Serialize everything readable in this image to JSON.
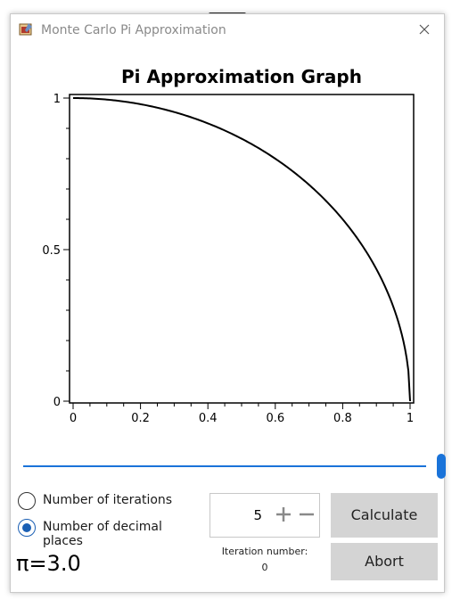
{
  "window": {
    "title": "Monte Carlo Pi Approximation"
  },
  "chart_data": {
    "type": "line",
    "title": "Pi Approximation Graph",
    "xlabel": "",
    "ylabel": "",
    "xlim": [
      0,
      1
    ],
    "ylim": [
      0,
      1
    ],
    "x_ticks": [
      "0",
      "0.2",
      "0.4",
      "0.6",
      "0.8",
      "1"
    ],
    "y_ticks": [
      "0",
      "0.5",
      "1"
    ],
    "grid": false,
    "series": [
      {
        "points_note": "quarter circle y = sqrt(1 - x^2)",
        "color": "#000000"
      }
    ]
  },
  "slider": {
    "value": 1.0
  },
  "options": {
    "iterations_label": "Number of iterations",
    "decimal_places_label": "Number of decimal places",
    "selected": "decimal_places"
  },
  "result": {
    "pi_text": "π=3.0"
  },
  "stepper": {
    "value": "5"
  },
  "iteration": {
    "label": "Iteration number:",
    "value": "0"
  },
  "buttons": {
    "calculate": "Calculate",
    "abort": "Abort"
  },
  "colors": {
    "accent": "#1a73d9",
    "button_bg": "#d4d4d4"
  }
}
